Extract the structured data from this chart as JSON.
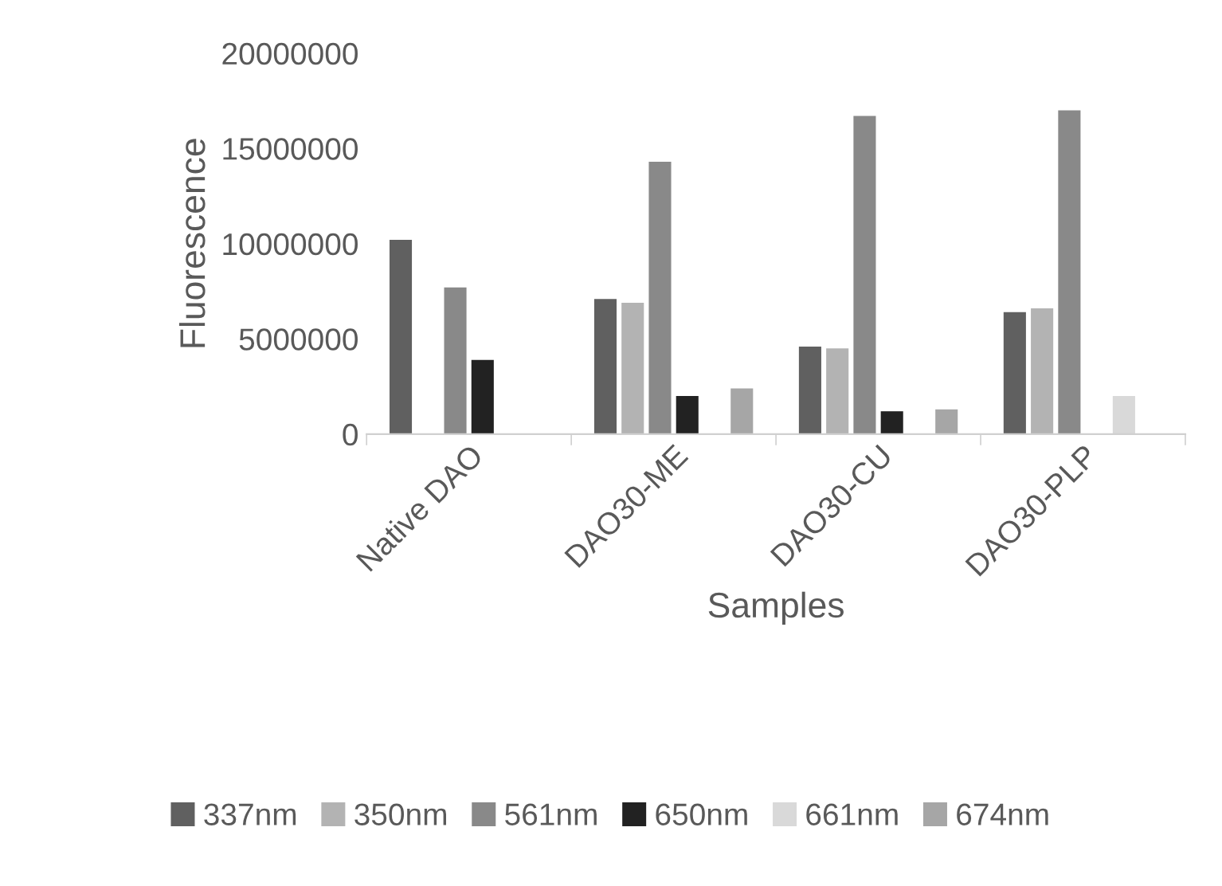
{
  "chart_data": {
    "type": "bar",
    "xlabel": "Samples",
    "ylabel": "Fluorescence",
    "categories": [
      "Native DAO",
      "DAO30-ME",
      "DAO30-CU",
      "DAO30-PLP"
    ],
    "series": [
      {
        "name": "337nm",
        "color": "#606060",
        "values": [
          10200000,
          7100000,
          4600000,
          6400000
        ]
      },
      {
        "name": "350nm",
        "color": "#b3b3b3",
        "values": [
          null,
          6900000,
          4500000,
          6600000
        ]
      },
      {
        "name": "561nm",
        "color": "#898989",
        "values": [
          7700000,
          14300000,
          16700000,
          17000000
        ]
      },
      {
        "name": "650nm",
        "color": "#222222",
        "values": [
          3900000,
          2000000,
          1200000,
          null
        ]
      },
      {
        "name": "661nm",
        "color": "#d9d9d9",
        "values": [
          null,
          null,
          null,
          2000000
        ]
      },
      {
        "name": "674nm",
        "color": "#a6a6a6",
        "values": [
          null,
          2400000,
          1300000,
          null
        ]
      }
    ],
    "ylim": [
      0,
      20000000
    ],
    "yticks": [
      0,
      5000000,
      10000000,
      15000000,
      20000000
    ],
    "grid": false,
    "legend": "bottom"
  }
}
